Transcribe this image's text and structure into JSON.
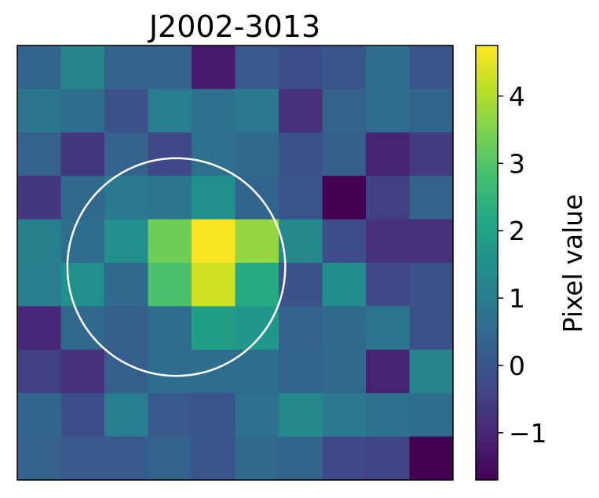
{
  "chart_data": {
    "type": "heatmap",
    "title": "J2002-3013",
    "rows": 10,
    "cols": 10,
    "values": [
      [
        0.4,
        1.2,
        0.3,
        0.3,
        -1.2,
        0.1,
        -0.2,
        0.0,
        0.6,
        0.0
      ],
      [
        0.8,
        0.6,
        -0.1,
        1.0,
        0.7,
        0.9,
        -0.8,
        0.3,
        0.6,
        0.4
      ],
      [
        0.3,
        -0.7,
        0.3,
        -0.3,
        0.7,
        0.5,
        -0.1,
        0.2,
        -1.1,
        -0.6
      ],
      [
        -0.7,
        0.5,
        0.9,
        0.8,
        1.5,
        0.4,
        0.0,
        -1.7,
        -0.5,
        0.3
      ],
      [
        1.1,
        0.6,
        1.5,
        3.3,
        4.7,
        3.7,
        1.3,
        -0.2,
        -0.8,
        -0.8
      ],
      [
        1.0,
        1.5,
        0.5,
        2.9,
        4.3,
        2.2,
        -0.1,
        1.4,
        -0.3,
        -0.1
      ],
      [
        -1.0,
        0.5,
        0.2,
        0.6,
        1.9,
        1.7,
        0.3,
        0.5,
        0.8,
        -0.1
      ],
      [
        -0.5,
        -0.8,
        0.2,
        0.6,
        0.6,
        0.6,
        0.4,
        0.5,
        -1.1,
        1.2
      ],
      [
        0.4,
        -0.2,
        1.0,
        0.1,
        0.0,
        0.7,
        1.3,
        0.9,
        0.7,
        0.6
      ],
      [
        0.3,
        0.1,
        0.1,
        0.3,
        0.0,
        0.5,
        0.4,
        -0.3,
        -0.4,
        -1.7
      ]
    ],
    "vmin": -1.7,
    "vmax": 4.75,
    "colormap": "viridis",
    "colorbar": {
      "label": "Pixel value",
      "ticks": [
        -1,
        0,
        1,
        2,
        3,
        4
      ],
      "tick_labels": [
        "−1",
        "0",
        "1",
        "2",
        "3",
        "4"
      ]
    },
    "aperture": {
      "shape": "circle",
      "center_col": 3.15,
      "center_row": 4.6,
      "radius_cells": 2.5,
      "color": "#ffffff"
    },
    "grid": false,
    "axes_ticks": false
  }
}
